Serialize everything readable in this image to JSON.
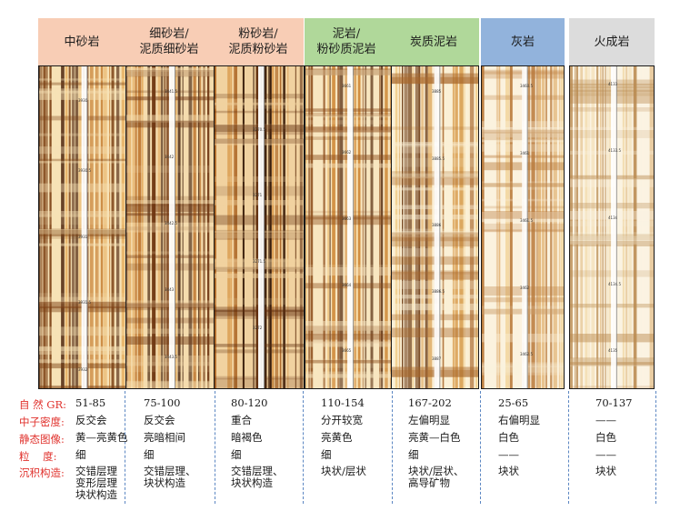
{
  "columns": [
    {
      "id": "c1",
      "header": [
        "中砂岩"
      ],
      "values": [
        "51-85",
        "反交会",
        "黄—亮黄色",
        "细",
        "交错层理\n变形层理\n块状构造"
      ]
    },
    {
      "id": "c2",
      "header": [
        "细砂岩/",
        "泥质细砂岩"
      ],
      "values": [
        "75-100",
        "反交会",
        "亮暗相间",
        "细",
        "交错层理、\n块状构造"
      ]
    },
    {
      "id": "c3",
      "header": [
        "粉砂岩/",
        "泥质粉砂岩"
      ],
      "values": [
        "80-120",
        "重合",
        "暗褐色",
        "细",
        "交错层理、\n块状构造"
      ]
    },
    {
      "id": "c4",
      "header": [
        "泥岩/",
        "粉砂质泥岩"
      ],
      "values": [
        "110-154",
        "分开较宽",
        "亮黄色",
        "细",
        "块状/层状"
      ]
    },
    {
      "id": "c5",
      "header": [
        "炭质泥岩"
      ],
      "values": [
        "167-202",
        "左偏明显",
        "亮黄—白色",
        "细",
        "块状/层状、\n高导矿物"
      ]
    },
    {
      "id": "c6",
      "header": [
        "灰岩"
      ],
      "values": [
        "25-65",
        "右偏明显",
        "白色",
        "——",
        "块状"
      ]
    },
    {
      "id": "c7",
      "header": [
        "火成岩"
      ],
      "values": [
        "70-137",
        "——",
        "白色",
        "——",
        "块状"
      ]
    }
  ],
  "row_labels": [
    "自 然 GR:",
    "中子密度:",
    "静态图像:",
    "粒    度:",
    "沉积构造:"
  ],
  "depth_labels": {
    "p1": [
      "3930",
      "3930.5",
      "3931",
      "3931.5",
      "3932"
    ],
    "p2": [
      "3441.5",
      "3442",
      "3442.5",
      "3443",
      "3443.5"
    ],
    "p3": [
      "3270.5",
      "3271",
      "3271.5",
      "3272"
    ],
    "p4": [
      "3661",
      "3662",
      "3663",
      "3664",
      "3665"
    ],
    "p5": [
      "3885",
      "3885.5",
      "3886",
      "3886.5",
      "3887"
    ],
    "p6": [
      "3460.5",
      "3461",
      "3461.5",
      "3462",
      "3462.5"
    ],
    "p7": [
      "4133",
      "4133.5",
      "4134",
      "4134.5",
      "4135"
    ]
  },
  "colors": {
    "pink": "#f8cdb5",
    "green": "#b0d89a",
    "blue": "#92b3dc",
    "gray": "#dcdcdc",
    "label_red": "#e0322d",
    "separator_blue": "#5b86c2"
  }
}
